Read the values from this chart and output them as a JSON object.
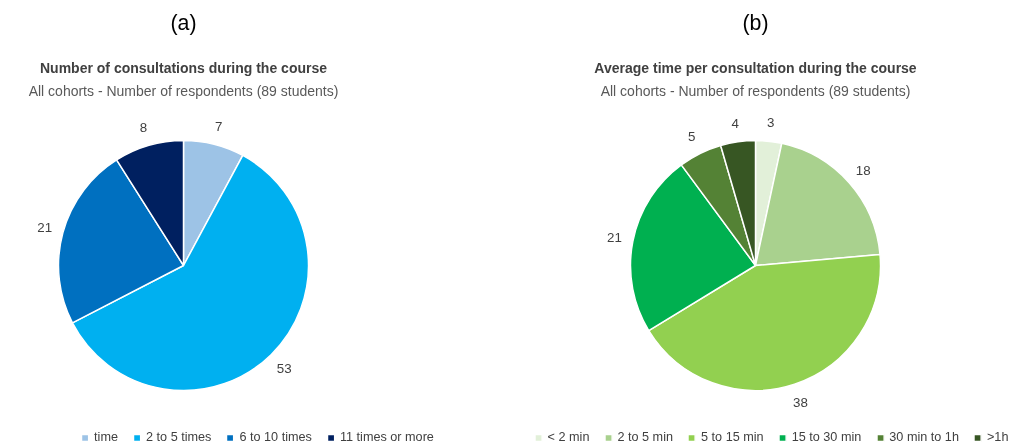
{
  "chart_data": [
    {
      "type": "pie",
      "title": "Number of consultations during the course",
      "subtitle": "All cohorts - Number of respondents (89 students)",
      "annotations": [
        "(a)"
      ],
      "categories": [
        "time",
        "2 to 5 times",
        "6 to 10 times",
        "11 times or more"
      ],
      "values": [
        7,
        53,
        21,
        8
      ],
      "colors": [
        "#9dc3e6",
        "#00b0f0",
        "#0070c0",
        "#002060"
      ],
      "data_labels": true,
      "legend": "bottom"
    },
    {
      "type": "pie",
      "title": "Average time per consultation during the course",
      "subtitle": "All cohorts - Number of respondents (89 students)",
      "annotations": [
        "(b)"
      ],
      "categories": [
        "< 2 min",
        "2 to 5 min",
        "5 to 15 min",
        "15 to 30 min",
        "30 min to 1h",
        ">1h"
      ],
      "values": [
        3,
        18,
        38,
        21,
        5,
        4
      ],
      "colors": [
        "#e2f0d9",
        "#a9d18e",
        "#92d050",
        "#00b050",
        "#548235",
        "#375623"
      ],
      "data_labels": true,
      "legend": "bottom"
    }
  ]
}
